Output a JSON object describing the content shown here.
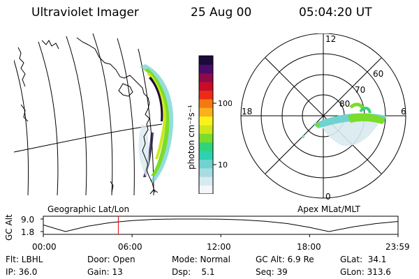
{
  "header": {
    "instrument": "Ultraviolet Imager",
    "date": "25 Aug 00",
    "time": "05:04:20 UT"
  },
  "colorbar": {
    "unit_label": "photon cm⁻²s⁻¹",
    "ticks": [
      "100",
      "10"
    ],
    "colors": [
      "#f4f6f8",
      "#d8eaf0",
      "#a9dbe3",
      "#6fd3cf",
      "#2fd1b1",
      "#30d47b",
      "#7bdc2a",
      "#cde81a",
      "#fbf21a",
      "#fbb01e",
      "#f47a10",
      "#ea2b16",
      "#c80b2a",
      "#8e0a49",
      "#4a0b6a",
      "#1a0b3a"
    ]
  },
  "geo_panel": {
    "label": "Geographic Lat/Lon"
  },
  "polar_panel": {
    "label": "Apex MLat/MLT",
    "mlt_labels": [
      "12",
      "18",
      "6",
      "0"
    ],
    "lat_labels": [
      "60",
      "70",
      "80"
    ]
  },
  "orbit_plot": {
    "ylabel": "GC Alt",
    "yticks": [
      "9.0",
      "1.8"
    ],
    "xticks": [
      "00:00",
      "06:00",
      "12:00",
      "18:00",
      "23:59"
    ],
    "current_time_hours": 5.07,
    "altitude_re": {
      "t": [
        0,
        1.5,
        3,
        4.5,
        6,
        7.5,
        9,
        10.5,
        12,
        13.5,
        15,
        16.5,
        18,
        19.3,
        21,
        22.5,
        23.98
      ],
      "v": [
        5.6,
        1.8,
        4.9,
        6.9,
        8.1,
        8.8,
        9.0,
        9.0,
        8.9,
        8.5,
        7.7,
        6.4,
        4.2,
        1.8,
        4.6,
        6.4,
        7.6
      ]
    }
  },
  "info": {
    "flt": "Flt: LBHL",
    "ip": "IP: 36.0",
    "door": "Door: Open",
    "gain": "Gain: 13",
    "mode": "Mode: Normal",
    "dsp": "Dsp:    5.1",
    "gc_alt": "GC Alt: 6.9 Re",
    "seq": "Seq: 39",
    "glat": "GLat:  34.1",
    "glon": "GLon: 313.6"
  }
}
